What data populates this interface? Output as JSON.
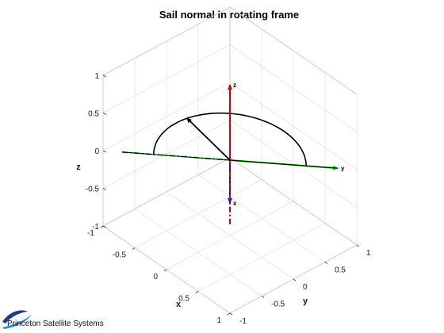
{
  "chart_data": {
    "type": "line",
    "title": "Sail normal in rotating frame",
    "xlabel": "x",
    "ylabel": "y",
    "zlabel": "z",
    "xlim": [
      -1,
      1
    ],
    "ylim": [
      -1,
      1
    ],
    "zlim": [
      -1,
      1
    ],
    "xticks": [
      "-1",
      "-0.5",
      "0",
      "0.5",
      "1"
    ],
    "yticks": [
      "-1",
      "-0.5",
      "0",
      "0.5",
      "1"
    ],
    "zticks": [
      "-1",
      "-0.5",
      "0",
      "0.5",
      "1"
    ],
    "grid": true,
    "view": "3d",
    "frame_axes": [
      {
        "name": "x",
        "color": "#0000ff",
        "start": [
          0,
          0,
          0
        ],
        "end": [
          0.55,
          -0.55,
          0
        ],
        "dashed_start": [
          -0.6,
          0.6,
          0
        ]
      },
      {
        "name": "y",
        "color": "#00cc00",
        "start": [
          0,
          0,
          0
        ],
        "end": [
          0.85,
          0.85,
          0
        ],
        "dashed_start": [
          -0.85,
          -0.85,
          0
        ]
      },
      {
        "name": "z",
        "color": "#cc0000",
        "start": [
          0,
          0,
          0
        ],
        "end": [
          0,
          0,
          1
        ],
        "dashed_start": [
          0,
          0,
          -0.85
        ]
      }
    ],
    "series": [
      {
        "type": "arc",
        "color": "#000000",
        "radius": 0.85,
        "start_deg": 45,
        "end_deg": 225,
        "plane": "xy"
      },
      {
        "type": "vector",
        "color": "#000000",
        "start": [
          0,
          0,
          0
        ],
        "end": [
          -0.84,
          0.16,
          0
        ]
      },
      {
        "type": "line",
        "color": "#000000",
        "start": [
          -0.85,
          -0.85,
          0
        ],
        "end": [
          0.85,
          0.85,
          0
        ]
      }
    ]
  },
  "logo": {
    "text": "Princeton Satellite Systems",
    "colors": [
      "#1b3f8f",
      "#2a8fd6"
    ]
  }
}
